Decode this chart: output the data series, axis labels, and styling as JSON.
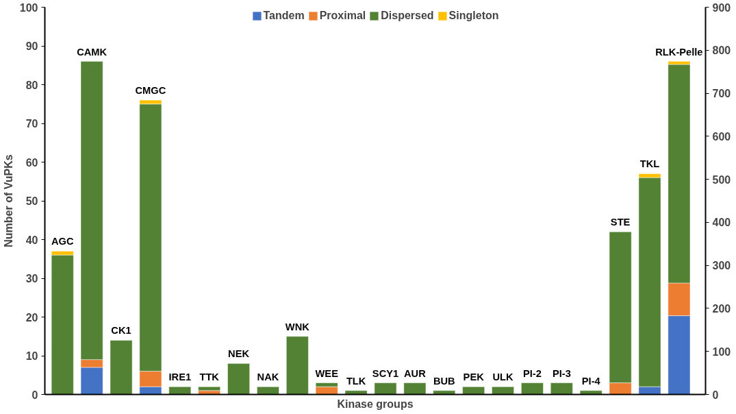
{
  "chart_data": {
    "type": "bar",
    "stacked": true,
    "xlabel": "Kinase groups",
    "ylabel": "Number of VuPKs",
    "categories": [
      "AGC",
      "CAMK",
      "CK1",
      "CMGC",
      "IRE1",
      "TTK",
      "NEK",
      "NAK",
      "WNK",
      "WEE",
      "TLK",
      "SCY1",
      "AUR",
      "BUB",
      "PEK",
      "ULK",
      "PI-2",
      "PI-3",
      "PI-4",
      "STE",
      "TKL",
      "RLK-Pelle"
    ],
    "ylim": [
      0,
      100
    ],
    "yticks": [
      0,
      10,
      20,
      30,
      40,
      50,
      60,
      70,
      80,
      90,
      100
    ],
    "y2lim": [
      0,
      900
    ],
    "y2ticks": [
      0,
      100,
      200,
      300,
      400,
      500,
      600,
      700,
      800,
      900
    ],
    "legend": "top",
    "grid": false,
    "series": [
      {
        "name": "Tandem",
        "color": "#4472c4",
        "values": [
          0,
          7,
          0,
          2,
          0,
          0,
          0,
          0,
          0,
          0,
          0,
          0,
          0,
          0,
          0,
          0,
          0,
          0,
          0,
          0,
          2,
          null
        ]
      },
      {
        "name": "Proximal",
        "color": "#ed7d31",
        "values": [
          0,
          2,
          0,
          4,
          0,
          1,
          0,
          0,
          0,
          2,
          0,
          0,
          0,
          0,
          0,
          0,
          0,
          0,
          0,
          3,
          0,
          null
        ]
      },
      {
        "name": "Dispersed",
        "color": "#548235",
        "values": [
          36,
          77,
          14,
          69,
          2,
          1,
          8,
          2,
          15,
          1,
          1,
          3,
          3,
          1,
          2,
          2,
          3,
          3,
          1,
          39,
          54,
          null
        ]
      },
      {
        "name": "Singleton",
        "color": "#ffc000",
        "values": [
          1,
          0,
          0,
          1,
          0,
          0,
          0,
          0,
          0,
          0,
          0,
          0,
          0,
          0,
          0,
          0,
          0,
          0,
          0,
          0,
          1,
          null
        ]
      },
      {
        "axis": "y2",
        "color": "#4472c4",
        "values": [
          null,
          null,
          null,
          null,
          null,
          null,
          null,
          null,
          null,
          null,
          null,
          null,
          null,
          null,
          null,
          null,
          null,
          null,
          null,
          null,
          null,
          183
        ]
      },
      {
        "axis": "y2",
        "color": "#ed7d31",
        "values": [
          null,
          null,
          null,
          null,
          null,
          null,
          null,
          null,
          null,
          null,
          null,
          null,
          null,
          null,
          null,
          null,
          null,
          null,
          null,
          null,
          null,
          76
        ]
      },
      {
        "axis": "y2",
        "color": "#548235",
        "values": [
          null,
          null,
          null,
          null,
          null,
          null,
          null,
          null,
          null,
          null,
          null,
          null,
          null,
          null,
          null,
          null,
          null,
          null,
          null,
          null,
          null,
          508
        ]
      },
      {
        "axis": "y2",
        "color": "#ffc000",
        "values": [
          null,
          null,
          null,
          null,
          null,
          null,
          null,
          null,
          null,
          null,
          null,
          null,
          null,
          null,
          null,
          null,
          null,
          null,
          null,
          null,
          null,
          7
        ]
      }
    ]
  }
}
